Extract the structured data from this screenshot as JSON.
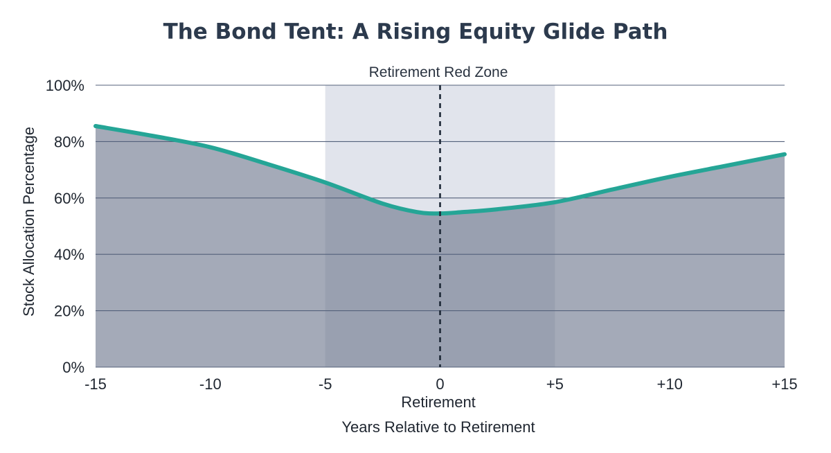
{
  "chart_data": {
    "type": "area",
    "title": "The Bond Tent: A Rising Equity Glide Path",
    "xlabel": "Years Relative to Retirement",
    "ylabel": "Stock Allocation Percentage",
    "xlim": [
      -15,
      15
    ],
    "ylim": [
      0,
      100
    ],
    "x_ticks": [
      -15,
      -10,
      -5,
      0,
      5,
      10,
      15
    ],
    "x_tick_labels": [
      "-15",
      "-10",
      "-5",
      "0",
      "+5",
      "+10",
      "+15"
    ],
    "y_ticks": [
      0,
      20,
      40,
      60,
      80,
      100
    ],
    "y_tick_labels": [
      "0%",
      "20%",
      "40%",
      "60%",
      "80%",
      "100%"
    ],
    "grid": "horizontal",
    "series": [
      {
        "x": [
          -15,
          -12.5,
          -10,
          -7.5,
          -5,
          -2.5,
          -1,
          0,
          1,
          2.5,
          5,
          7.5,
          10,
          12.5,
          15
        ],
        "values": [
          85.5,
          82,
          78,
          72,
          65.5,
          58,
          55,
          54.5,
          55,
          56,
          58.5,
          63,
          67.5,
          71.5,
          75.5
        ]
      }
    ],
    "annotations": {
      "red_zone": {
        "label": "Retirement Red Zone",
        "x_range": [
          -5,
          5
        ]
      },
      "retirement_marker": {
        "label": "Retirement",
        "x": 0
      }
    },
    "colors": {
      "line": "#25a596",
      "area": "#a4aab8",
      "zone_background": "#e1e4ec",
      "zone_overlay": "#8f97aa",
      "marker_line": "#1c2735",
      "grid": "#53607a"
    }
  }
}
